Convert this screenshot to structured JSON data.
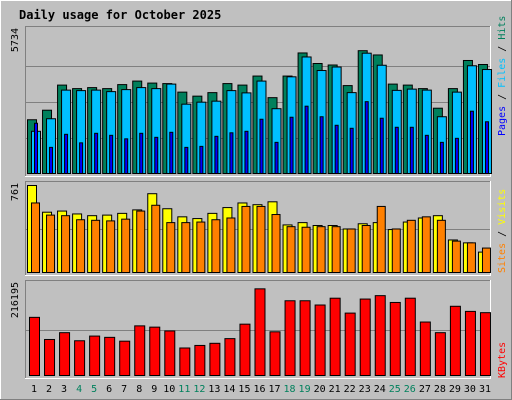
{
  "chart_data": {
    "type": "bar",
    "title": "Daily usage for October 2025",
    "categories": [
      "1",
      "2",
      "3",
      "4",
      "5",
      "6",
      "7",
      "8",
      "9",
      "10",
      "11",
      "12",
      "13",
      "14",
      "15",
      "16",
      "17",
      "18",
      "19",
      "20",
      "21",
      "22",
      "23",
      "24",
      "25",
      "26",
      "27",
      "28",
      "29",
      "30",
      "31"
    ],
    "weekend_days": [
      "4",
      "5",
      "11",
      "12",
      "18",
      "19",
      "25",
      "26"
    ],
    "colors": {
      "background": "#c0c0c0",
      "title": "#0000c0",
      "weekend_label": "#00805c",
      "hits": "#00805c",
      "files": "#00c0ff",
      "pages": "#0000ff",
      "visits": "#ffff00",
      "sites": "#ff8000",
      "kbytes": "#ff0000"
    },
    "panels": [
      {
        "key": "traffic",
        "max_label": "5734",
        "ylim": [
          0,
          5734
        ],
        "series": [
          {
            "name": "Hits",
            "values": [
              2180,
              2560,
              3560,
              3420,
              3460,
              3420,
              3580,
              3720,
              3640,
              3620,
              3280,
              3120,
              3260,
              3620,
              3560,
              3920,
              3060,
              3920,
              4840,
              4420,
              4360,
              3540,
              4930,
              4760,
              3600,
              3560,
              3420,
              2640,
              3420,
              4540,
              4380
            ]
          },
          {
            "name": "Files",
            "values": [
              1720,
              2220,
              3360,
              3340,
              3360,
              3300,
              3380,
              3460,
              3420,
              3600,
              2800,
              2880,
              2920,
              3340,
              3250,
              3720,
              2620,
              3890,
              4680,
              4140,
              4280,
              3260,
              4830,
              4350,
              3350,
              3400,
              3360,
              2300,
              3280,
              4330,
              4180
            ]
          },
          {
            "name": "Pages",
            "values": [
              2040,
              1080,
              1600,
              1260,
              1640,
              1560,
              1420,
              1640,
              1480,
              1680,
              1080,
              1120,
              1520,
              1660,
              1720,
              2200,
              1280,
              2280,
              2720,
              2300,
              1960,
              1840,
              2900,
              2240,
              1880,
              1880,
              1560,
              1280,
              1440,
              2520,
              2100
            ]
          }
        ]
      },
      {
        "key": "visitors",
        "max_label": "761",
        "ylim": [
          0,
          761
        ],
        "series": [
          {
            "name": "Visits",
            "values": [
              761,
              530,
              540,
              515,
              500,
              505,
              520,
              550,
              690,
              560,
              490,
              475,
              520,
              570,
              610,
              595,
              620,
              420,
              440,
              415,
              415,
              385,
              430,
              440,
              380,
              445,
              480,
              500,
              290,
              265,
              185
            ]
          },
          {
            "name": "Sites",
            "values": [
              610,
              505,
              500,
              465,
              460,
              455,
              470,
              540,
              590,
              440,
              440,
              445,
              465,
              480,
              580,
              580,
              510,
              405,
              400,
              405,
              405,
              385,
              415,
              580,
              385,
              460,
              490,
              460,
              280,
              265,
              220
            ]
          }
        ]
      },
      {
        "key": "volume",
        "max_label": "216195",
        "ylim": [
          0,
          216195
        ],
        "series": [
          {
            "name": "KBytes",
            "values": [
              139000,
              87000,
              103000,
              84000,
              95000,
              92000,
              83000,
              119000,
              116000,
              107000,
              67000,
              73000,
              78000,
              89000,
              123000,
              206000,
              105000,
              178000,
              178000,
              168000,
              184000,
              149000,
              182000,
              190000,
              174000,
              184000,
              128000,
              103000,
              165000,
              153000,
              150000
            ]
          }
        ]
      }
    ],
    "legend": [
      {
        "text": "Pages",
        "color_key": "pages"
      },
      {
        "text": "Files",
        "color_key": "files"
      },
      {
        "text": "Hits",
        "color_key": "hits"
      },
      {
        "text": "Sites",
        "color_key": "sites"
      },
      {
        "text": "Visits",
        "color_key": "visits"
      },
      {
        "text": "KBytes",
        "color_key": "kbytes"
      }
    ],
    "legend_separator": "/"
  }
}
